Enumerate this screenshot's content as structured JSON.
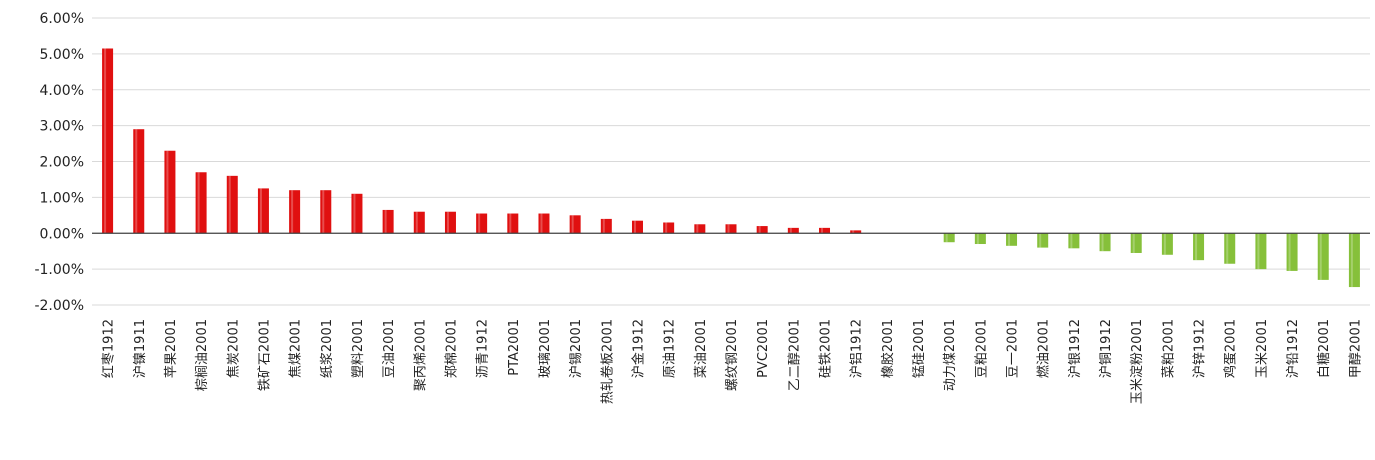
{
  "chart_data": {
    "type": "bar",
    "title": "",
    "xlabel": "",
    "ylabel": "",
    "ylim": [
      -0.02,
      0.06
    ],
    "yticks": [
      "6.00%",
      "5.00%",
      "4.00%",
      "3.00%",
      "2.00%",
      "1.00%",
      "0.00%",
      "-1.00%",
      "-2.00%"
    ],
    "ytick_values": [
      0.06,
      0.05,
      0.04,
      0.03,
      0.02,
      0.01,
      0.0,
      -0.01,
      -0.02
    ],
    "grid": true,
    "colors": {
      "positive": "#e01010",
      "negative": "#86c03a",
      "grid": "#d9d9d9",
      "zero": "#404040"
    },
    "categories": [
      "红枣1912",
      "沪镍1911",
      "苹果2001",
      "棕榈油2001",
      "焦炭2001",
      "铁矿石2001",
      "焦煤2001",
      "纸浆2001",
      "塑料2001",
      "豆油2001",
      "聚丙烯2001",
      "郑棉2001",
      "沥青1912",
      "PTA2001",
      "玻璃2001",
      "沪锡2001",
      "热轧卷板2001",
      "沪金1912",
      "原油1912",
      "菜油2001",
      "螺纹钢2001",
      "PVC2001",
      "乙二醇2001",
      "硅铁2001",
      "沪铝1912",
      "橡胶2001",
      "锰硅2001",
      "动力煤2001",
      "豆粕2001",
      "豆一2001",
      "燃油2001",
      "沪银1912",
      "沪铜1912",
      "玉米淀粉2001",
      "菜粕2001",
      "沪锌1912",
      "鸡蛋2001",
      "玉米2001",
      "沪铅1912",
      "白糖2001",
      "甲醇2001"
    ],
    "values": [
      0.0515,
      0.029,
      0.023,
      0.017,
      0.016,
      0.0125,
      0.012,
      0.012,
      0.011,
      0.0065,
      0.006,
      0.006,
      0.0055,
      0.0055,
      0.0055,
      0.005,
      0.004,
      0.0035,
      0.003,
      0.0025,
      0.0025,
      0.002,
      0.0015,
      0.0015,
      0.0008,
      0.0,
      0.0,
      -0.0025,
      -0.003,
      -0.0035,
      -0.004,
      -0.0042,
      -0.005,
      -0.0055,
      -0.006,
      -0.0075,
      -0.0085,
      -0.01,
      -0.0105,
      -0.013,
      -0.015
    ]
  }
}
